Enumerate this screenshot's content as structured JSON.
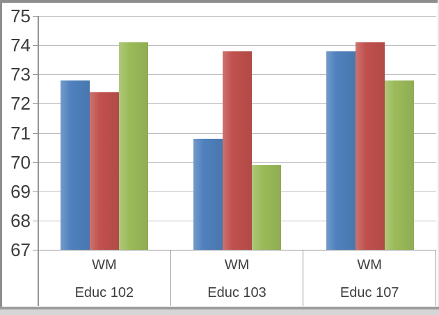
{
  "chart_data": {
    "type": "bar",
    "title": "",
    "xlabel": "",
    "ylabel": "",
    "categories": [
      "Educ 102",
      "Educ 103",
      "Educ 107"
    ],
    "subcategories": [
      "WM",
      "WM",
      "WM"
    ],
    "series": [
      {
        "name": "series-blue",
        "color": "#4F81BD",
        "values": [
          72.8,
          70.8,
          73.8
        ]
      },
      {
        "name": "series-red",
        "color": "#C0504D",
        "values": [
          72.4,
          73.8,
          74.1
        ]
      },
      {
        "name": "series-green",
        "color": "#9BBB59",
        "values": [
          74.1,
          69.9,
          72.8
        ]
      }
    ],
    "ylim": [
      67,
      75
    ],
    "yticks": [
      75,
      74,
      73,
      72,
      71,
      70,
      69,
      68,
      67
    ],
    "grid": true,
    "legend": false
  },
  "colors": {
    "grid": "#bdbdbd",
    "axis": "#949494",
    "text": "#3d3d3d",
    "frame_dark": "#8d8d8d",
    "frame_bottom": "#9c9c9c",
    "frame_bottom_band": "#d6d6d6",
    "frame_right": "#e7e7e7"
  }
}
